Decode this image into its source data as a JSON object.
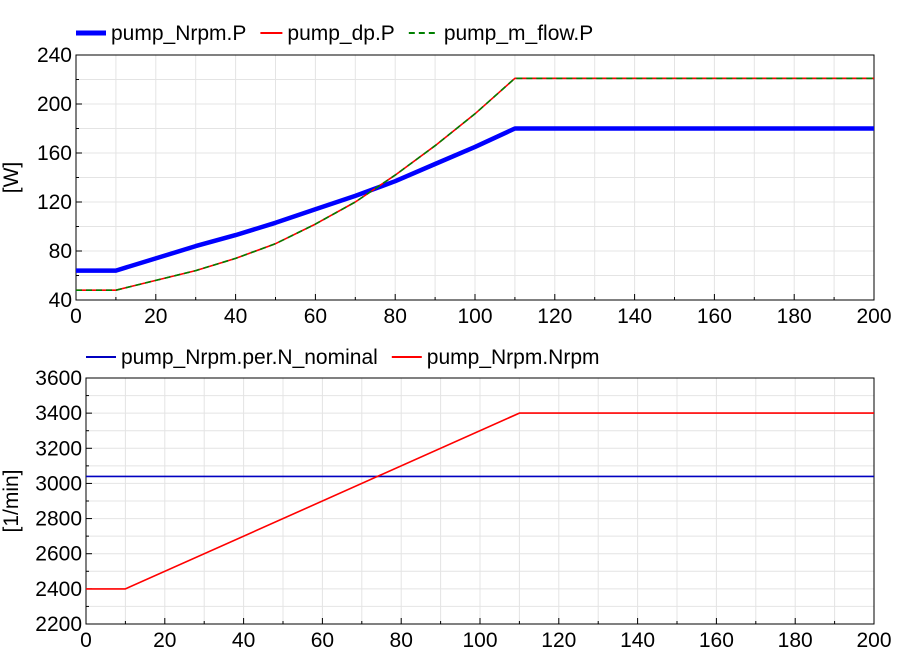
{
  "chart_data": [
    {
      "type": "line",
      "title": "",
      "xlabel": "",
      "ylabel": "[W]",
      "xlim": [
        0,
        200
      ],
      "ylim": [
        40,
        240
      ],
      "x_ticks": [
        0,
        20,
        40,
        60,
        80,
        100,
        120,
        140,
        160,
        180,
        200
      ],
      "y_ticks": [
        40,
        80,
        120,
        160,
        200,
        240
      ],
      "grid": true,
      "legend_position": "top",
      "series": [
        {
          "name": "pump_Nrpm.P",
          "color": "#0000ff",
          "style": "solid-thick",
          "x": [
            0,
            10,
            20,
            30,
            40,
            50,
            60,
            70,
            80,
            90,
            100,
            110,
            200
          ],
          "y": [
            64,
            64,
            74,
            84,
            93,
            103,
            114,
            125,
            137,
            151,
            165,
            180,
            180
          ]
        },
        {
          "name": "pump_dp.P",
          "color": "#ff0000",
          "style": "solid",
          "x": [
            0,
            10,
            20,
            30,
            40,
            50,
            60,
            70,
            80,
            90,
            100,
            110,
            200
          ],
          "y": [
            48,
            48,
            56,
            64,
            74,
            86,
            102,
            120,
            142,
            166,
            192,
            221,
            221
          ]
        },
        {
          "name": "pump_m_flow.P",
          "color": "#008000",
          "style": "dashed",
          "x": [
            0,
            10,
            20,
            30,
            40,
            50,
            60,
            70,
            80,
            90,
            100,
            110,
            200
          ],
          "y": [
            48,
            48,
            56,
            64,
            74,
            86,
            102,
            120,
            142,
            166,
            192,
            221,
            221
          ]
        }
      ]
    },
    {
      "type": "line",
      "title": "",
      "xlabel": "",
      "ylabel": "[1/min]",
      "xlim": [
        0,
        200
      ],
      "ylim": [
        2200,
        3600
      ],
      "x_ticks": [
        0,
        20,
        40,
        60,
        80,
        100,
        120,
        140,
        160,
        180,
        200
      ],
      "y_ticks": [
        2200,
        2400,
        2600,
        2800,
        3000,
        3200,
        3400,
        3600
      ],
      "grid": true,
      "legend_position": "top",
      "series": [
        {
          "name": "pump_Nrpm.per.N_nominal",
          "color": "#0000c0",
          "style": "solid",
          "x": [
            0,
            200
          ],
          "y": [
            3040,
            3040
          ]
        },
        {
          "name": "pump_Nrpm.Nrpm",
          "color": "#ff0000",
          "style": "solid",
          "x": [
            0,
            10,
            110,
            200
          ],
          "y": [
            2400,
            2400,
            3400,
            3400
          ]
        }
      ]
    }
  ]
}
